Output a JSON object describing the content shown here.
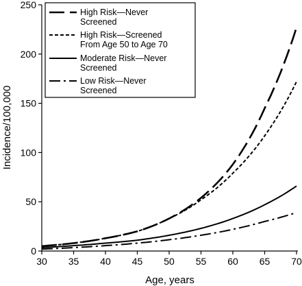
{
  "chart_data": {
    "type": "line",
    "title": "",
    "xlabel": "Age, years",
    "ylabel": "Incidence/100,000",
    "xlim": [
      30,
      70
    ],
    "ylim": [
      0,
      250
    ],
    "xticks": [
      30,
      35,
      40,
      45,
      50,
      55,
      60,
      65,
      70
    ],
    "yticks": [
      0,
      50,
      100,
      150,
      200,
      250
    ],
    "grid": false,
    "legend_position": "top-left",
    "x": [
      30,
      35,
      40,
      45,
      50,
      55,
      60,
      65,
      70
    ],
    "series": [
      {
        "name": [
          "High Risk—Never",
          "Screened"
        ],
        "dash": "long-dash",
        "values": [
          5,
          8,
          13,
          20,
          33,
          54,
          88,
          145,
          227
        ]
      },
      {
        "name": [
          "High Risk—Screened",
          "From Age 50 to Age 70"
        ],
        "dash": "short-dash",
        "values": [
          5,
          8,
          13,
          20,
          33,
          52,
          79,
          117,
          172
        ]
      },
      {
        "name": [
          "Moderate Risk—Never",
          "Screened"
        ],
        "dash": "solid",
        "values": [
          3.5,
          5.5,
          8,
          11,
          16,
          23,
          33,
          47,
          66
        ]
      },
      {
        "name": [
          "Low Risk—Never",
          "Screened"
        ],
        "dash": "dash-dot",
        "values": [
          2,
          3.5,
          5.5,
          8,
          11.5,
          16,
          22,
          30,
          39
        ]
      }
    ]
  }
}
